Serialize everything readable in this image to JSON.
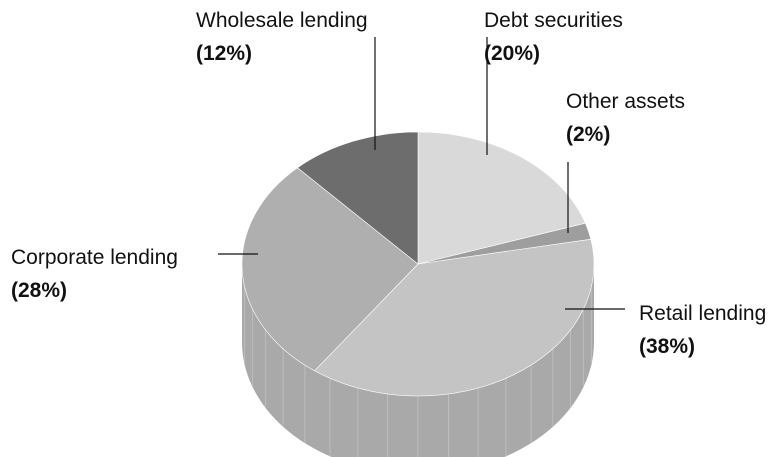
{
  "chart_data": {
    "type": "pie",
    "style": "3d",
    "slices": [
      {
        "name": "Debt securities",
        "pct_label": "(20%)",
        "value": 20,
        "color": "#d9d9d9"
      },
      {
        "name": "Other assets",
        "pct_label": "(2%)",
        "value": 2,
        "color": "#9e9e9e"
      },
      {
        "name": "Retail lending",
        "pct_label": "(38%)",
        "value": 38,
        "color": "#c4c4c4"
      },
      {
        "name": "Corporate lending",
        "pct_label": "(28%)",
        "value": 28,
        "color": "#afafaf"
      },
      {
        "name": "Wholesale lending",
        "pct_label": "(12%)",
        "value": 12,
        "color": "#6d6d6d"
      }
    ],
    "side_color": "#a9a9a9",
    "legend": "none"
  }
}
